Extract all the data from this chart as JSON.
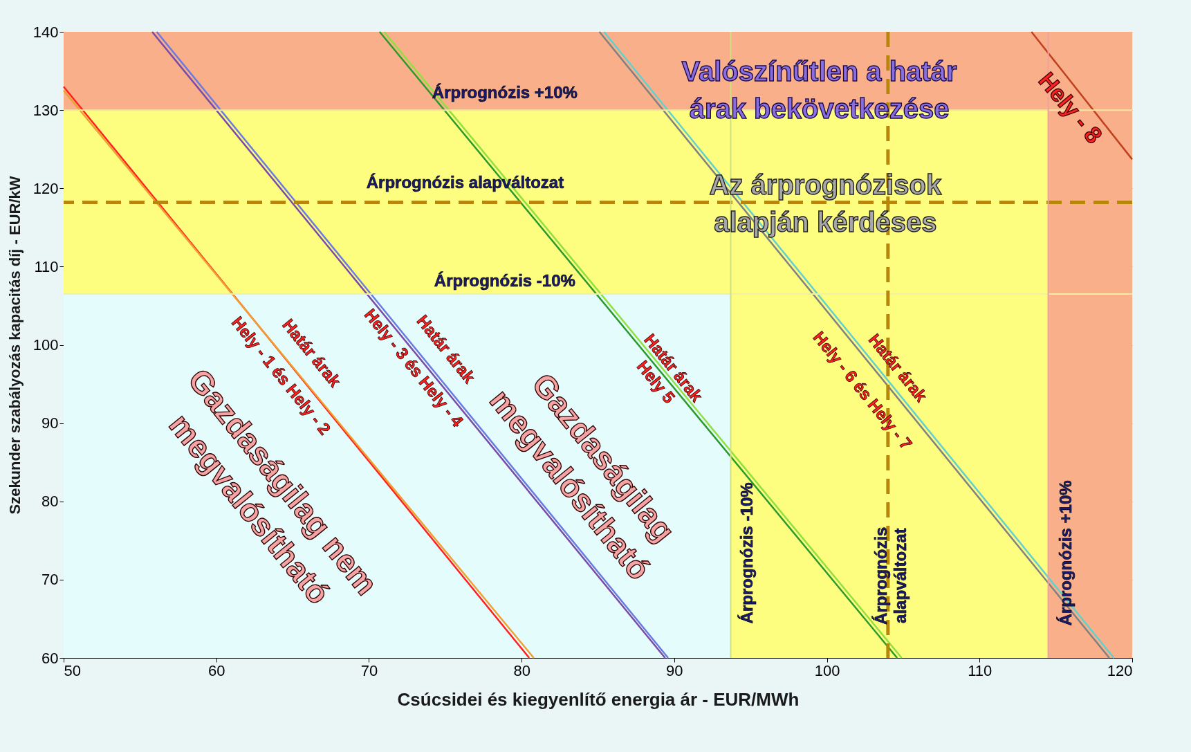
{
  "chart_data": {
    "type": "line",
    "xlabel": "Csúcsidei és kiegyenlítő energia ár - EUR/MWh",
    "ylabel": "Szekunder szabályozás kapacitás díj - EUR/kW",
    "xlim": [
      50,
      120
    ],
    "ylim": [
      60,
      140
    ],
    "xticks": [
      50,
      60,
      70,
      80,
      90,
      100,
      110,
      120
    ],
    "yticks": [
      60,
      70,
      80,
      90,
      100,
      110,
      120,
      130,
      140
    ],
    "grid": "y",
    "series": [
      {
        "color": "#ff2020",
        "x": [
          50,
          80.5
        ],
        "values": [
          133,
          60
        ]
      },
      {
        "color": "#f0a030",
        "x": [
          50,
          80.8
        ],
        "values": [
          132.5,
          60
        ]
      },
      {
        "color": "#7a4aa8",
        "x": [
          55.8,
          89.4
        ],
        "values": [
          140,
          60
        ]
      },
      {
        "color": "#6a7ae0",
        "x": [
          56.1,
          89.6
        ],
        "values": [
          140,
          60
        ]
      },
      {
        "color": "#2a9a2a",
        "x": [
          70.7,
          104.6
        ],
        "values": [
          140,
          60
        ]
      },
      {
        "color": "#90e040",
        "x": [
          71,
          104.9
        ],
        "values": [
          140,
          60
        ]
      },
      {
        "color": "#808080",
        "x": [
          85.1,
          118.5
        ],
        "values": [
          140,
          60
        ]
      },
      {
        "color": "#60d0d0",
        "x": [
          85.4,
          118.8
        ],
        "values": [
          140,
          60
        ]
      },
      {
        "color": "#c04020",
        "x": [
          113.4,
          120
        ],
        "values": [
          140,
          123.7
        ]
      }
    ],
    "bands": [
      {
        "axis": "y",
        "from": 60,
        "to": 106.5,
        "color": "#e4fcfc"
      },
      {
        "axis": "x",
        "from": 93.7,
        "to": 114.5,
        "color": "#fdfd80"
      },
      {
        "axis": "y",
        "from": 106.5,
        "to": 130,
        "color": "#fdfd80"
      },
      {
        "axis": "y",
        "from": 130,
        "to": 140,
        "color": "#f9b08a"
      },
      {
        "axis": "x",
        "from": 114.5,
        "to": 120,
        "color": "#f9b08a"
      }
    ],
    "ref_lines": [
      {
        "axis": "y",
        "value": 130,
        "label": "Árprognózis +10%",
        "color": "#f0e8a0",
        "line_style": "solid"
      },
      {
        "axis": "y",
        "value": 118.2,
        "label": "Árprognózis alapváltozat",
        "color": "#b8860b",
        "line_style": "dashed"
      },
      {
        "axis": "y",
        "value": 106.5,
        "label": "Árprognózis -10%",
        "color": "#f0f0a0",
        "line_style": "solid"
      },
      {
        "axis": "x",
        "value": 93.7,
        "label": "Árprognózis -10%",
        "color": "#d0e080",
        "line_style": "solid"
      },
      {
        "axis": "x",
        "value": 104,
        "label": "Árprognózis alapváltozat",
        "color": "#b8860b",
        "line_style": "dashed"
      },
      {
        "axis": "x",
        "value": 114.5,
        "label": "Árprognózis +10%",
        "color": "#f0a0a0",
        "line_style": "solid"
      }
    ],
    "annotations": [
      "Valószínűtlen a határ\nárak bekövetkezése",
      "Az árprognózisok\nalapján kérdéses",
      "Hely - 8",
      "Gazdaságilag\nmegvalósítható",
      "Gazdaságilag nem\nmegvalósítható",
      "Hely - 1 és Hely - 2",
      "Határ árak",
      "Hely - 3 és Hely - 4",
      "Határ árak",
      "Határ árak\nHely 5",
      "Hely - 6 és Hely - 7",
      "Határ árak"
    ]
  }
}
